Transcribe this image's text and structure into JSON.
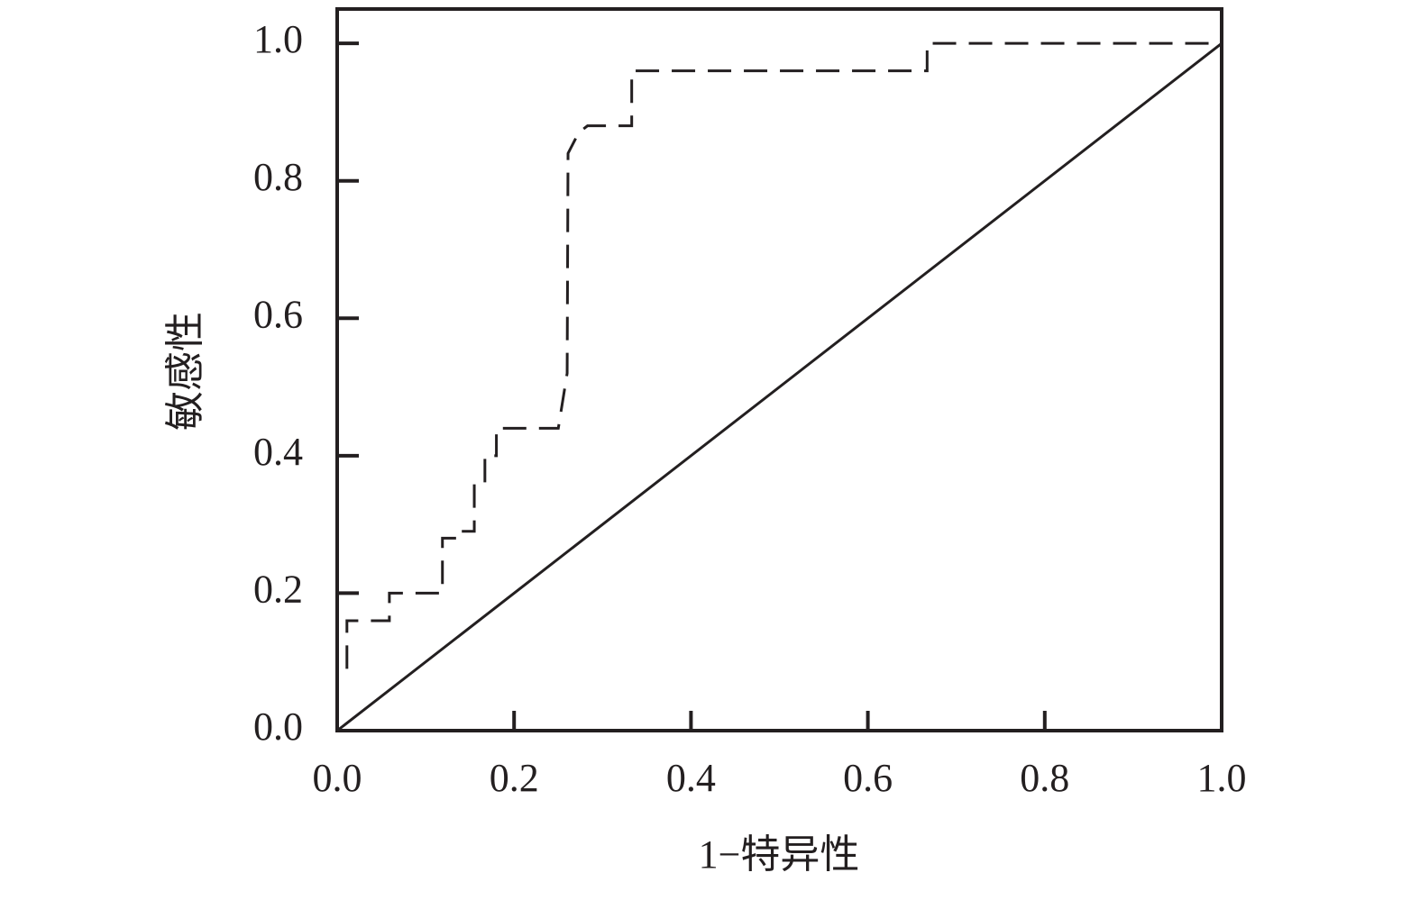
{
  "chart_data": {
    "type": "line",
    "x_label": "1−特异性",
    "y_label": "敏感性",
    "xlim": [
      0,
      1
    ],
    "ylim": [
      0,
      1.05
    ],
    "xticks": [
      {
        "value": 0,
        "label": "0.0"
      },
      0.2,
      0.4,
      0.6,
      0.8,
      {
        "value": 1,
        "label": "1.0"
      }
    ],
    "yticks": [
      {
        "value": 0,
        "label": "0.0"
      },
      0.2,
      0.4,
      0.6,
      0.8,
      {
        "value": 1,
        "label": "1.0"
      }
    ],
    "series": [
      {
        "color": "#231f20",
        "style": "dashed",
        "x": [
          0.011,
          0.011,
          0.059,
          0.059,
          0.119,
          0.119,
          0.14,
          0.14,
          0.155,
          0.155,
          0.167,
          0.167,
          0.18,
          0.18,
          0.25,
          0.26,
          0.261,
          0.273,
          0.283,
          0.333,
          0.333,
          0.667,
          0.667,
          1.0
        ],
        "values": [
          0.09,
          0.16,
          0.16,
          0.2,
          0.2,
          0.28,
          0.28,
          0.29,
          0.29,
          0.36,
          0.36,
          0.4,
          0.4,
          0.44,
          0.44,
          0.52,
          0.84,
          0.87,
          0.88,
          0.88,
          0.96,
          0.96,
          1.0,
          1.0
        ]
      },
      {
        "color": "#231f20",
        "style": "solid",
        "x": [
          0,
          1
        ],
        "values": [
          0,
          1
        ]
      }
    ]
  }
}
